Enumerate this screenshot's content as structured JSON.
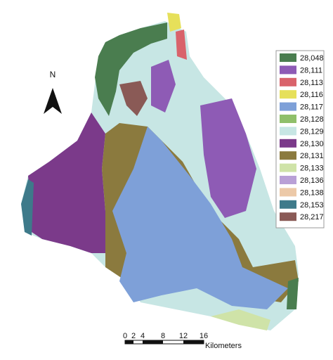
{
  "north_label": "N",
  "legend": [
    {
      "label": "28,048",
      "color": "#4a7d4f"
    },
    {
      "label": "28,111",
      "color": "#8e5bb5"
    },
    {
      "label": "28,113",
      "color": "#d9636b"
    },
    {
      "label": "28,116",
      "color": "#e6e05a"
    },
    {
      "label": "28,117",
      "color": "#7ea0d8"
    },
    {
      "label": "28,128",
      "color": "#8fbf6a"
    },
    {
      "label": "28,129",
      "color": "#c7e6e4"
    },
    {
      "label": "28,130",
      "color": "#7b3a8a"
    },
    {
      "label": "28,131",
      "color": "#8b7a3e"
    },
    {
      "label": "28,133",
      "color": "#cfe3a8"
    },
    {
      "label": "28,136",
      "color": "#b9a0d6"
    },
    {
      "label": "28,138",
      "color": "#ecc9a8"
    },
    {
      "label": "28,153",
      "color": "#3e7a8a"
    },
    {
      "label": "28,217",
      "color": "#8a5a56"
    }
  ],
  "scale_bar": {
    "ticks": [
      "0",
      "2",
      "4",
      "8",
      "12",
      "16"
    ],
    "unit": "Kilometers"
  }
}
